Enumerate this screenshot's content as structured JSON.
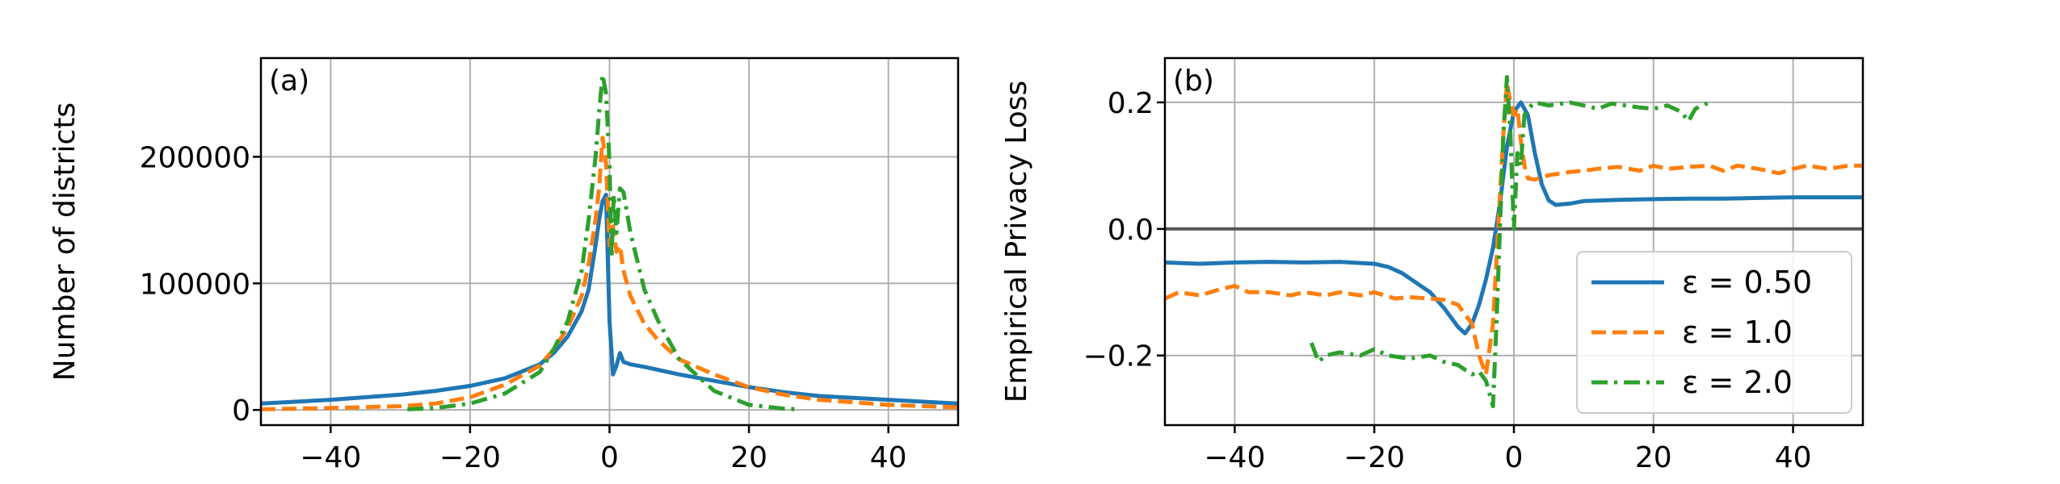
{
  "figure": {
    "panels": [
      {
        "label": "(a)",
        "ylabel": "Number of districts",
        "xticks": [
          "−40",
          "−20",
          "0",
          "20",
          "40"
        ],
        "yticks": [
          "0",
          "100000",
          "200000"
        ]
      },
      {
        "label": "(b)",
        "ylabel": "Empirical Privacy Loss",
        "xticks": [
          "−40",
          "−20",
          "0",
          "20",
          "40"
        ],
        "yticks": [
          "−0.2",
          "0.0",
          "0.2"
        ],
        "legend": [
          "ε = 0.50",
          "ε = 1.0",
          "ε = 2.0"
        ]
      }
    ]
  },
  "colors": {
    "eps050": "#1f77b4",
    "eps10": "#ff7f0e",
    "eps20": "#2ca02c",
    "zero_line": "#555555"
  },
  "chart_data": [
    {
      "type": "line",
      "panel": "(a)",
      "xlim": [
        -50,
        50
      ],
      "ylim": [
        -12000,
        278000
      ],
      "grid": true,
      "xlabel": "",
      "ylabel": "Number of districts",
      "series": [
        {
          "name": "ε = 0.50",
          "style": "solid",
          "x": [
            -50,
            -40,
            -30,
            -25,
            -20,
            -15,
            -10,
            -8,
            -6,
            -4,
            -3,
            -2,
            -1.5,
            -1,
            -0.5,
            0,
            0.5,
            1,
            1.5,
            2,
            3,
            5,
            10,
            15,
            20,
            25,
            30,
            40,
            50
          ],
          "y": [
            5000,
            8000,
            12000,
            15000,
            19000,
            25000,
            36000,
            45000,
            58000,
            78000,
            95000,
            130000,
            150000,
            165000,
            170000,
            70000,
            28000,
            35000,
            45000,
            38000,
            36000,
            34000,
            28000,
            23000,
            18000,
            14000,
            11000,
            8000,
            5000
          ]
        },
        {
          "name": "ε = 1.0",
          "style": "dashed",
          "x": [
            -50,
            -40,
            -30,
            -25,
            -20,
            -15,
            -10,
            -8,
            -6,
            -4,
            -3,
            -2,
            -1.5,
            -1,
            -0.5,
            0,
            0.5,
            1,
            1.5,
            2,
            3,
            5,
            7,
            10,
            15,
            20,
            25,
            30,
            40,
            50
          ],
          "y": [
            500,
            1500,
            3000,
            5000,
            10000,
            20000,
            35000,
            48000,
            65000,
            90000,
            115000,
            150000,
            175000,
            215000,
            195000,
            130000,
            145000,
            125000,
            130000,
            110000,
            90000,
            68000,
            55000,
            40000,
            28000,
            18000,
            12000,
            8000,
            4000,
            2000
          ]
        },
        {
          "name": "ε = 2.0",
          "style": "dashdot",
          "x": [
            -29,
            -25,
            -20,
            -15,
            -10,
            -8,
            -6,
            -4,
            -3,
            -2,
            -1.5,
            -1,
            -0.5,
            0,
            0.3,
            0.6,
            1,
            1.5,
            2,
            3,
            5,
            7,
            10,
            15,
            20,
            25,
            27
          ],
          "y": [
            500,
            1500,
            5000,
            13000,
            30000,
            48000,
            70000,
            110000,
            150000,
            200000,
            235000,
            265000,
            250000,
            195000,
            120000,
            170000,
            140000,
            175000,
            172000,
            140000,
            95000,
            70000,
            40000,
            15000,
            4000,
            1000,
            500
          ]
        }
      ]
    },
    {
      "type": "line",
      "panel": "(b)",
      "xlim": [
        -50,
        50
      ],
      "ylim": [
        -0.31,
        0.27
      ],
      "grid": true,
      "xlabel": "",
      "ylabel": "Empirical Privacy Loss",
      "legend_position": "lower-right",
      "series": [
        {
          "name": "ε = 0.50",
          "style": "solid",
          "x": [
            -50,
            -45,
            -40,
            -35,
            -30,
            -25,
            -20,
            -18,
            -16,
            -14,
            -12,
            -10,
            -8,
            -7,
            -6,
            -5,
            -4,
            -3,
            -2,
            -1,
            0,
            1,
            2,
            3,
            4,
            5,
            6,
            8,
            10,
            15,
            20,
            25,
            30,
            35,
            40,
            45,
            50
          ],
          "y": [
            -0.053,
            -0.055,
            -0.053,
            -0.052,
            -0.053,
            -0.052,
            -0.055,
            -0.06,
            -0.07,
            -0.085,
            -0.1,
            -0.125,
            -0.155,
            -0.165,
            -0.15,
            -0.12,
            -0.08,
            -0.03,
            0.04,
            0.13,
            0.185,
            0.2,
            0.18,
            0.12,
            0.07,
            0.045,
            0.038,
            0.04,
            0.044,
            0.046,
            0.047,
            0.048,
            0.048,
            0.049,
            0.05,
            0.05,
            0.05
          ]
        },
        {
          "name": "ε = 1.0",
          "style": "dashed",
          "x": [
            -50,
            -48,
            -45,
            -42,
            -40,
            -38,
            -35,
            -32,
            -30,
            -27,
            -25,
            -22,
            -20,
            -17,
            -15,
            -12,
            -10,
            -8,
            -6,
            -5,
            -4,
            -3,
            -2,
            -1.5,
            -1,
            -0.5,
            0,
            0.5,
            1,
            1.5,
            2,
            3,
            5,
            8,
            10,
            12,
            15,
            18,
            20,
            22,
            25,
            28,
            30,
            32,
            35,
            38,
            40,
            42,
            45,
            48,
            50
          ],
          "y": [
            -0.11,
            -0.1,
            -0.105,
            -0.095,
            -0.09,
            -0.1,
            -0.1,
            -0.105,
            -0.1,
            -0.105,
            -0.1,
            -0.105,
            -0.1,
            -0.11,
            -0.108,
            -0.11,
            -0.112,
            -0.12,
            -0.15,
            -0.2,
            -0.23,
            -0.15,
            0.05,
            0.15,
            0.23,
            0.2,
            0.18,
            0.19,
            0.14,
            0.1,
            0.08,
            0.078,
            0.085,
            0.09,
            0.092,
            0.095,
            0.098,
            0.092,
            0.1,
            0.095,
            0.098,
            0.1,
            0.092,
            0.1,
            0.095,
            0.088,
            0.095,
            0.1,
            0.095,
            0.1,
            0.1
          ]
        },
        {
          "name": "ε = 2.0",
          "style": "dashdot",
          "x": [
            -29,
            -28,
            -27,
            -25,
            -22,
            -20,
            -18,
            -15,
            -12,
            -10,
            -8,
            -6,
            -5,
            -4,
            -3,
            -2.5,
            -2,
            -1.5,
            -1,
            -0.5,
            0,
            0.5,
            1,
            1.5,
            2,
            3,
            5,
            8,
            10,
            12,
            14,
            16,
            18,
            20,
            22,
            24,
            25,
            26,
            27,
            28
          ],
          "y": [
            -0.18,
            -0.21,
            -0.2,
            -0.195,
            -0.2,
            -0.19,
            -0.2,
            -0.205,
            -0.2,
            -0.21,
            -0.215,
            -0.23,
            -0.225,
            -0.24,
            -0.28,
            -0.15,
            0.0,
            0.15,
            0.24,
            0.15,
            0.0,
            0.12,
            0.1,
            0.18,
            0.19,
            0.2,
            0.195,
            0.2,
            0.195,
            0.19,
            0.198,
            0.195,
            0.192,
            0.19,
            0.195,
            0.185,
            0.17,
            0.19,
            0.195,
            0.2
          ]
        }
      ]
    }
  ]
}
